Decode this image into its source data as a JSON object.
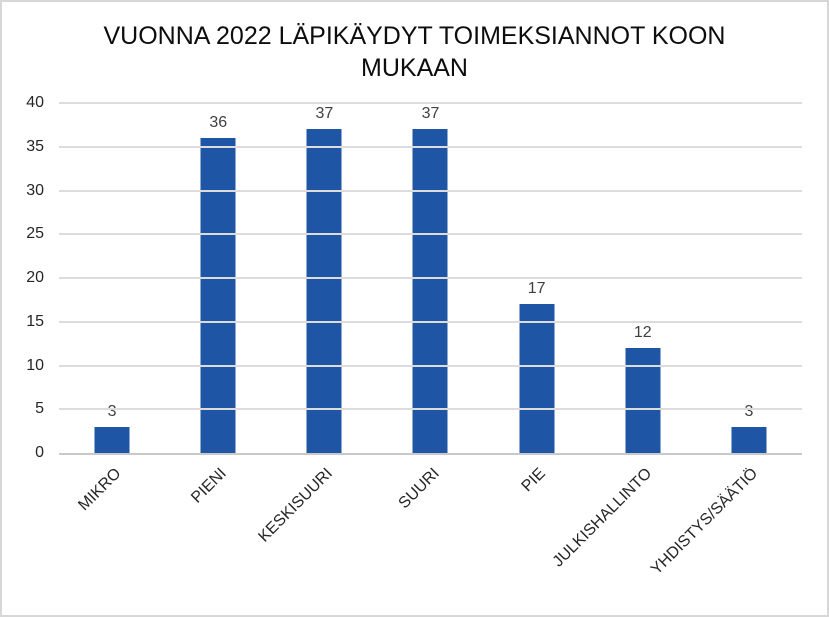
{
  "chart_data": {
    "type": "bar",
    "title": "VUONNA 2022 LÄPIKÄYDYT TOIMEKSIANNOT KOON MUKAAN",
    "categories": [
      "MIKRO",
      "PIENI",
      "KESKISUURI",
      "SUURI",
      "PIE",
      "JULKISHALLINTO",
      "YHDISTYS/SÄÄTIÖ"
    ],
    "values": [
      3,
      36,
      37,
      37,
      17,
      12,
      3
    ],
    "data_labels_shown": true,
    "xlabel": "",
    "ylabel": "",
    "ylim": [
      0,
      40
    ],
    "yticks": [
      0,
      5,
      10,
      15,
      20,
      25,
      30,
      35,
      40
    ],
    "grid": true,
    "legend": false,
    "colors": {
      "bar": "#1F55A5",
      "gridline": "#DCDCDC",
      "axis_line": "#C9C9C9",
      "data_label": "#404040",
      "tick_label": "#262626",
      "title": "#0D0D0D",
      "background": "#FFFFFF",
      "chart_border": "#D7D7D7"
    }
  }
}
